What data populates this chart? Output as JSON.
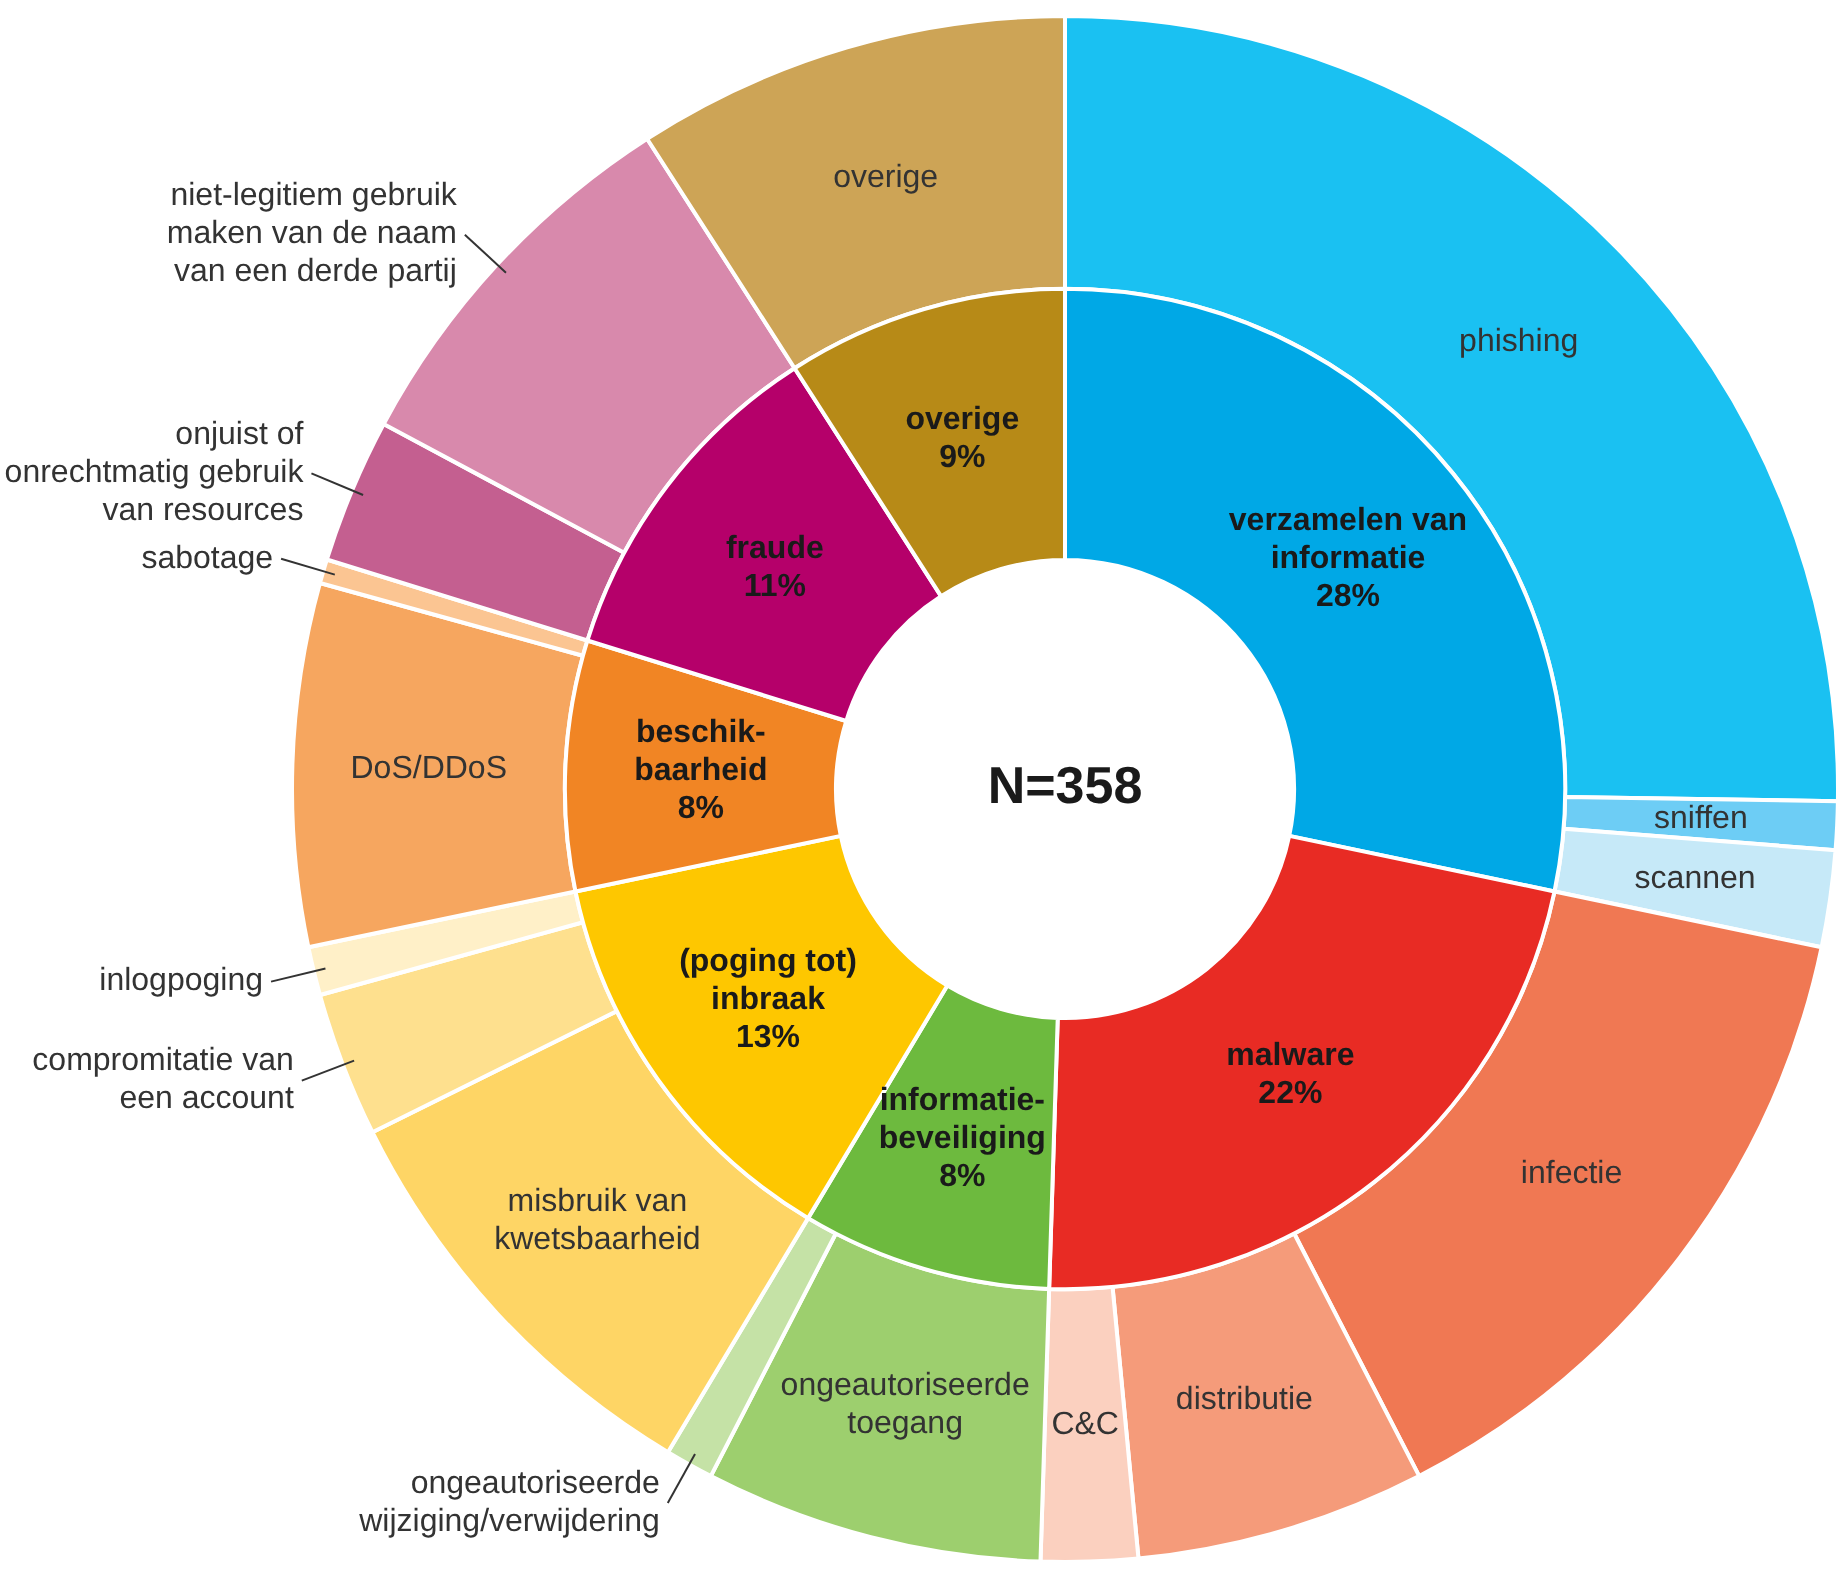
{
  "chart_data": [
    {
      "type": "donut",
      "annotations": [
        "N=358"
      ],
      "categories": [
        "verzamelen van informatie",
        "malware",
        "informatie-beveiliging",
        "(poging tot) inbraak",
        "beschik-baarheid",
        "fraude",
        "overige"
      ],
      "values": [
        28,
        22,
        8,
        13,
        8,
        11,
        9
      ],
      "value_labels": [
        "28%",
        "22%",
        "8%",
        "13%",
        "8%",
        "11%",
        "9%"
      ],
      "colors": [
        "#00a8e6",
        "#e82b24",
        "#6dba3e",
        "#fec700",
        "#f18524",
        "#b5006a",
        "#b78a17"
      ]
    },
    {
      "type": "donut",
      "categories": [
        "phishing",
        "sniffen",
        "scannen",
        "infectie",
        "distributie",
        "C&C",
        "ongeautoriseerde toegang",
        "ongeautoriseerde wijziging/verwijdering",
        "misbruik van kwetsbaarheid",
        "compromitatie van een account",
        "inlogpoging",
        "DoS/DDoS",
        "sabotage",
        "onjuist of onrechtmatig gebruik van resources",
        "niet-legitiem gebruik maken van de naam van een derde partij",
        "overige"
      ],
      "values": [
        25,
        1,
        2,
        14,
        6,
        2,
        7,
        1,
        9,
        3,
        1,
        7.5,
        0.5,
        3,
        8,
        9
      ],
      "colors": [
        "#1ac1f2",
        "#6dcdf5",
        "#c6e9f8",
        "#f07853",
        "#f59b7a",
        "#fbd0bf",
        "#9dcf6e",
        "#c5e2a6",
        "#fed565",
        "#fee08e",
        "#fff0c8",
        "#f6a65f",
        "#fbc592",
        "#c45f90",
        "#d889ac",
        "#cda456"
      ]
    }
  ]
}
